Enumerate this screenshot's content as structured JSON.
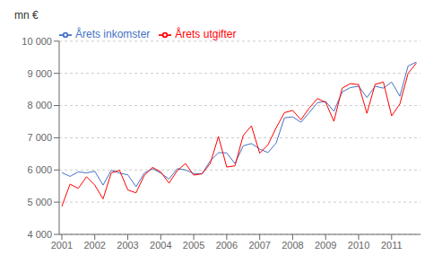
{
  "chart_data": {
    "type": "line",
    "ylabel": "mn €",
    "x": [
      2001,
      2001.25,
      2001.5,
      2001.75,
      2002,
      2002.25,
      2002.5,
      2002.75,
      2003,
      2003.25,
      2003.5,
      2003.75,
      2004,
      2004.25,
      2004.5,
      2004.75,
      2005,
      2005.25,
      2005.5,
      2005.75,
      2006,
      2006.25,
      2006.5,
      2006.75,
      2007,
      2007.25,
      2007.5,
      2007.75,
      2008,
      2008.25,
      2008.5,
      2008.75,
      2009,
      2009.25,
      2009.5,
      2009.75,
      2010,
      2010.25,
      2010.5,
      2010.75,
      2011,
      2011.25,
      2011.5,
      2011.75
    ],
    "series": [
      {
        "name": "Årets inkomster",
        "color": "#4472C4",
        "values": [
          5920,
          5800,
          5940,
          5910,
          5960,
          5530,
          5990,
          5900,
          5850,
          5480,
          5900,
          6040,
          5900,
          5720,
          6040,
          6000,
          5890,
          5880,
          6280,
          6540,
          6530,
          6200,
          6750,
          6820,
          6650,
          6540,
          6840,
          7620,
          7650,
          7480,
          7780,
          8090,
          8130,
          7820,
          8420,
          8560,
          8600,
          8250,
          8600,
          8540,
          8730,
          8290,
          9230,
          9350
        ]
      },
      {
        "name": "Årets utgifter",
        "color": "#FF0000",
        "values": [
          4870,
          5560,
          5430,
          5790,
          5530,
          5100,
          5910,
          5990,
          5380,
          5290,
          5830,
          6080,
          5940,
          5590,
          5980,
          6200,
          5840,
          5880,
          6200,
          7040,
          6090,
          6130,
          7070,
          7370,
          6520,
          6780,
          7310,
          7780,
          7850,
          7560,
          7920,
          8220,
          8100,
          7510,
          8540,
          8680,
          8650,
          7760,
          8660,
          8730,
          7680,
          8050,
          9000,
          9320
        ]
      }
    ],
    "xlim": [
      2000.92,
      2011.875
    ],
    "xticks": [
      2001,
      2002,
      2003,
      2004,
      2005,
      2006,
      2007,
      2008,
      2009,
      2010,
      2011
    ],
    "ylim": [
      4000,
      10000
    ],
    "yticks": [
      {
        "value": 4000,
        "label": "4 000"
      },
      {
        "value": 5000,
        "label": "5 000"
      },
      {
        "value": 6000,
        "label": "6 000"
      },
      {
        "value": 7000,
        "label": "7 000"
      },
      {
        "value": 8000,
        "label": "8 000"
      },
      {
        "value": 9000,
        "label": "9 000"
      },
      {
        "value": 10000,
        "label": "10 000"
      }
    ],
    "grid": true,
    "legend": "upper left"
  }
}
